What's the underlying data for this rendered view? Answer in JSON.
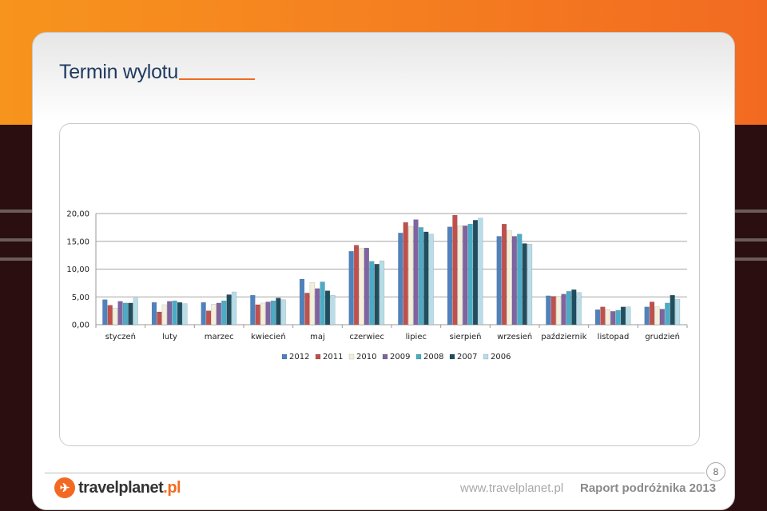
{
  "slide": {
    "title": "Termin wylotu",
    "page_number": "8",
    "logo_text": "travelplanet",
    "logo_suffix": ".pl",
    "website": "www.travelplanet.pl",
    "report_name": "Raport podróżnika 2013"
  },
  "colors": {
    "accent": "#f26a21",
    "title": "#1f3a5f"
  },
  "chart_data": {
    "type": "bar",
    "categories": [
      "styczeń",
      "luty",
      "marzec",
      "kwiecień",
      "maj",
      "czerwiec",
      "lipiec",
      "sierpień",
      "wrzesień",
      "październik",
      "listopad",
      "grudzień"
    ],
    "ylim": [
      0,
      20
    ],
    "yticks": [
      "0,00",
      "5,00",
      "10,00",
      "15,00",
      "20,00"
    ],
    "ytick_values": [
      0,
      5,
      10,
      15,
      20
    ],
    "grid": true,
    "legend_position": "bottom",
    "series": [
      {
        "name": "2012",
        "color": "#4f81bd",
        "values": [
          4.5,
          4.0,
          4.0,
          5.3,
          8.2,
          13.2,
          16.5,
          17.6,
          15.9,
          5.2,
          2.7,
          3.2
        ]
      },
      {
        "name": "2011",
        "color": "#c0504d",
        "values": [
          3.5,
          2.3,
          2.5,
          3.6,
          5.7,
          14.3,
          18.4,
          19.7,
          18.1,
          5.1,
          3.2,
          4.1
        ]
      },
      {
        "name": "2010",
        "color": "#f3efd9",
        "values": [
          3.0,
          3.6,
          3.7,
          3.9,
          7.6,
          13.7,
          17.7,
          17.8,
          16.9,
          5.1,
          2.7,
          3.2
        ]
      },
      {
        "name": "2009",
        "color": "#8064a2",
        "values": [
          4.2,
          4.2,
          3.9,
          4.1,
          6.5,
          13.8,
          18.9,
          17.8,
          15.9,
          5.5,
          2.4,
          2.8
        ]
      },
      {
        "name": "2008",
        "color": "#4bacc6",
        "values": [
          3.9,
          4.3,
          4.3,
          4.3,
          7.7,
          11.4,
          17.5,
          18.1,
          16.3,
          6.0,
          2.6,
          3.9
        ]
      },
      {
        "name": "2007",
        "color": "#1f4e5f",
        "values": [
          3.9,
          4.0,
          5.4,
          4.8,
          6.1,
          10.9,
          16.7,
          18.8,
          14.6,
          6.3,
          3.2,
          5.3
        ]
      },
      {
        "name": "2006",
        "color": "#b7dde8",
        "values": [
          4.8,
          3.8,
          5.9,
          4.5,
          5.3,
          11.5,
          16.3,
          19.2,
          14.5,
          5.8,
          3.2,
          4.6
        ]
      }
    ]
  }
}
